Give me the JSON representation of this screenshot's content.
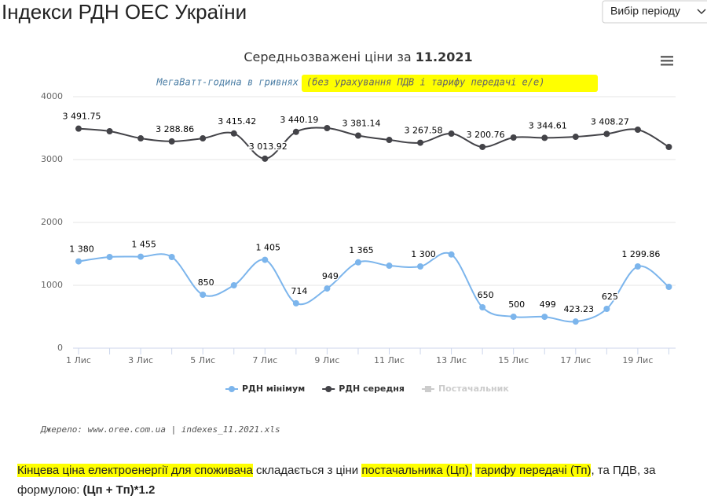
{
  "page": {
    "heading": "Індекси РДН ОЕС України",
    "period_button": "Вибір періоду",
    "source": "Джерело: www.oree.com.ua | indexes_11.2021.xls",
    "paragraph": [
      {
        "text": "Кінцева ціна електроенергії для споживача",
        "highlight": true
      },
      {
        "text": " складається з ціни "
      },
      {
        "text": "постачальника (Цп),",
        "highlight": true
      },
      {
        "text": " "
      },
      {
        "text": "тарифу передачі (Тп)",
        "highlight": true
      },
      {
        "text": ", та ПДВ, за формулою: "
      },
      {
        "text": "(Цп + Тп)*1.2",
        "bold": true
      }
    ]
  },
  "chart_data": {
    "type": "line",
    "title": "Середньозважені ціни за",
    "title_period": "11.2021",
    "subtitle": "МегаВатт-година в гривнях",
    "subtitle_note": "(без урахування ПДВ і тарифу передачі е/е)",
    "categories": [
      "1 Лис",
      null,
      "3 Лис",
      null,
      "5 Лис",
      null,
      "7 Лис",
      null,
      "9 Лис",
      null,
      "11 Лис",
      null,
      "13 Лис",
      null,
      "15 Лис",
      null,
      "17 Лис",
      null,
      "19 Лис",
      null
    ],
    "series": [
      {
        "name": "РДН мінімум",
        "color": "#7cb5ec",
        "values": [
          1380,
          1450,
          1455,
          1450,
          850,
          1000,
          1405,
          714,
          949,
          1365,
          1312,
          1300,
          1490,
          650,
          500,
          499,
          423.23,
          625,
          1299.86,
          975
        ],
        "value_labels": [
          "1 380",
          null,
          "1 455",
          null,
          "850",
          null,
          "1 405",
          "714",
          "949",
          "1 365",
          null,
          "1 300",
          null,
          "650",
          "500",
          "499",
          "423.23",
          "625",
          "1 299.86",
          null
        ]
      },
      {
        "name": "РДН середня",
        "color": "#434348",
        "values": [
          3491.75,
          3450,
          3337,
          3288.86,
          3337,
          3415.42,
          3013.92,
          3440.19,
          3500,
          3381.14,
          3312,
          3267.58,
          3412,
          3200.76,
          3350,
          3344.61,
          3362,
          3408.27,
          3475,
          3200
        ],
        "value_labels": [
          "3 491.75",
          null,
          null,
          "3 288.86",
          null,
          "3 415.42",
          "3 013.92",
          "3 440.19",
          null,
          "3 381.14",
          null,
          "3 267.58",
          null,
          "3 200.76",
          null,
          "3 344.61",
          null,
          "3 408.27",
          null,
          null
        ]
      }
    ],
    "inactive_legend": [
      "Постачальник"
    ],
    "ylim": [
      0,
      4000
    ],
    "yticks": [
      0,
      1000,
      2000,
      3000,
      4000
    ],
    "grid": true
  }
}
